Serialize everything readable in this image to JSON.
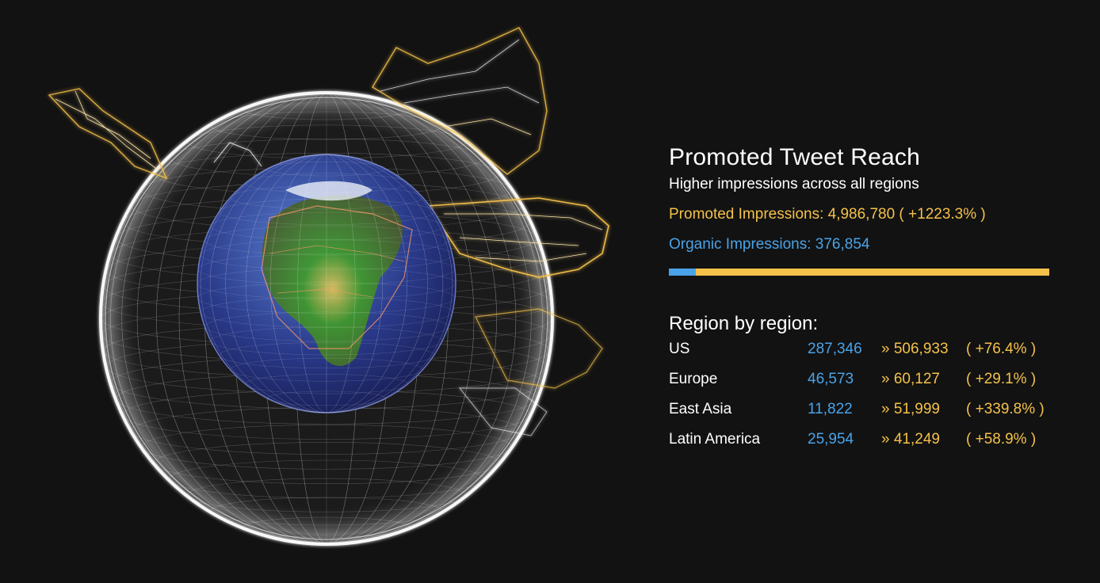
{
  "panel": {
    "title": "Promoted Tweet Reach",
    "subtitle": "Higher impressions across all regions",
    "promoted_text": "Promoted Impressions: 4,986,780 ( +1223.3% )",
    "organic_text": "Organic Impressions: 376,854",
    "promoted_impressions": 4986780,
    "organic_impressions": 376854,
    "organic_share": 0.07
  },
  "regions": {
    "heading": "Region by region:",
    "rows": [
      {
        "name": "US",
        "organic": "287,346",
        "promoted": "» 506,933",
        "change": "( +76.4% )"
      },
      {
        "name": "Europe",
        "organic": "46,573",
        "promoted": "» 60,127",
        "change": "( +29.1% )"
      },
      {
        "name": "East Asia",
        "organic": "11,822",
        "promoted": "» 51,999",
        "change": "( +339.8% )"
      },
      {
        "name": "Latin America",
        "organic": "25,954",
        "promoted": "» 41,249",
        "change": "( +58.9% )"
      }
    ]
  },
  "colors": {
    "background": "#121212",
    "promoted": "#f4c14a",
    "organic": "#4aa3e8",
    "mesh": "#ffffff",
    "ocean": "#2a3a8a",
    "land": "#3f8a2a"
  },
  "icons": {
    "visualization": "wireframe-globe-icon"
  }
}
